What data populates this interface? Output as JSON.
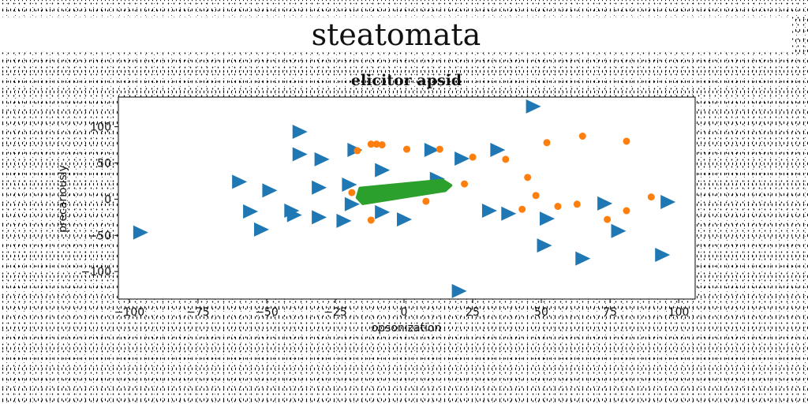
{
  "page": {
    "suptitle": "steatomata"
  },
  "chart_data": {
    "type": "scatter",
    "title": "elicitor apsid",
    "xlabel": "opsonization",
    "ylabel": "precariously",
    "xlim": [
      -104,
      106
    ],
    "ylim": [
      -138,
      141
    ],
    "xticks": [
      -100,
      -75,
      -50,
      -25,
      0,
      25,
      50,
      75,
      100
    ],
    "yticks": [
      -100,
      -50,
      0,
      50,
      100
    ],
    "grid": false,
    "series": [
      {
        "marker": "triangle-right",
        "color": "#1f77b4",
        "points": [
          [
            47,
            128
          ],
          [
            -38,
            93
          ],
          [
            -38,
            62
          ],
          [
            -30,
            55
          ],
          [
            -18,
            68
          ],
          [
            10,
            68
          ],
          [
            21,
            56
          ],
          [
            34,
            68
          ],
          [
            -8,
            40
          ],
          [
            12,
            28
          ],
          [
            -60,
            24
          ],
          [
            -49,
            12
          ],
          [
            -31,
            16
          ],
          [
            -20,
            20
          ],
          [
            -19,
            -7
          ],
          [
            -8,
            -18
          ],
          [
            -56,
            -17
          ],
          [
            -41,
            -16
          ],
          [
            -40,
            -22
          ],
          [
            -31,
            -25
          ],
          [
            -22,
            -30
          ],
          [
            0,
            -28
          ],
          [
            31,
            -16
          ],
          [
            38,
            -20
          ],
          [
            52,
            -27
          ],
          [
            73,
            -6
          ],
          [
            96,
            -4
          ],
          [
            -52,
            -42
          ],
          [
            -96,
            -46
          ],
          [
            51,
            -64
          ],
          [
            65,
            -82
          ],
          [
            78,
            -44
          ],
          [
            94,
            -77
          ],
          [
            20,
            -127
          ]
        ]
      },
      {
        "marker": "circle",
        "color": "#ff7f0e",
        "points": [
          [
            -17,
            67
          ],
          [
            -12,
            76
          ],
          [
            -10,
            76
          ],
          [
            -8,
            75
          ],
          [
            1,
            69
          ],
          [
            13,
            69
          ],
          [
            25,
            58
          ],
          [
            37,
            55
          ],
          [
            52,
            78
          ],
          [
            65,
            87
          ],
          [
            81,
            80
          ],
          [
            45,
            30
          ],
          [
            22,
            21
          ],
          [
            -19,
            9
          ],
          [
            48,
            5
          ],
          [
            90,
            3
          ],
          [
            -12,
            -29
          ],
          [
            8,
            -3
          ],
          [
            43,
            -14
          ],
          [
            56,
            -10
          ],
          [
            63,
            -7
          ],
          [
            74,
            -28
          ],
          [
            81,
            -16
          ]
        ]
      },
      {
        "marker": "filled-region",
        "color": "#2ca02c",
        "points": [
          [
            -16,
            15
          ],
          [
            14,
            26
          ],
          [
            17,
            19
          ],
          [
            15,
            12
          ],
          [
            -15,
            -6
          ],
          [
            -17,
            2
          ]
        ]
      }
    ]
  }
}
